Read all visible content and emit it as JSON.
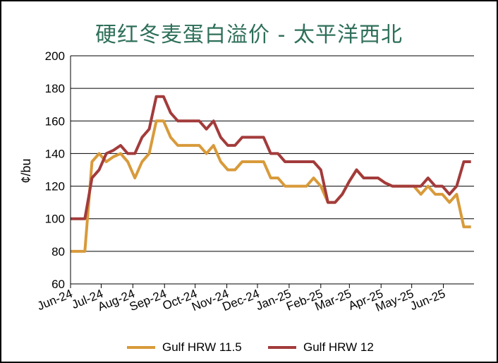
{
  "colors": {
    "gulf_115": "#d89a3a",
    "gulf_12": "#a33b3b",
    "title": "#2e6f5a"
  },
  "chart_data": {
    "type": "line",
    "title": "硬红冬麦蛋白溢价 - 太平洋西北",
    "ylabel": "¢/bu",
    "xlabel": "",
    "ylim": [
      60,
      200
    ],
    "yticks": [
      60,
      80,
      100,
      120,
      140,
      160,
      180,
      200
    ],
    "grid": "horizontal",
    "legend_position": "bottom",
    "x_tick_labels": [
      "Jun-24",
      "Jul-24",
      "Aug-24",
      "Sep-24",
      "Oct-24",
      "Nov-24",
      "Dec-24",
      "Jan-25",
      "Feb-25",
      "Mar-25",
      "Apr-25",
      "May-25",
      "Jun-25"
    ],
    "x": [
      "2024-06-01",
      "2024-06-08",
      "2024-06-15",
      "2024-06-22",
      "2024-06-29",
      "2024-07-06",
      "2024-07-13",
      "2024-07-20",
      "2024-07-27",
      "2024-08-03",
      "2024-08-10",
      "2024-08-17",
      "2024-08-24",
      "2024-08-31",
      "2024-09-07",
      "2024-09-14",
      "2024-09-21",
      "2024-09-28",
      "2024-10-05",
      "2024-10-12",
      "2024-10-19",
      "2024-10-26",
      "2024-11-02",
      "2024-11-09",
      "2024-11-16",
      "2024-11-23",
      "2024-11-30",
      "2024-12-07",
      "2024-12-14",
      "2024-12-21",
      "2024-12-28",
      "2025-01-04",
      "2025-01-11",
      "2025-01-18",
      "2025-01-25",
      "2025-02-01",
      "2025-02-08",
      "2025-02-15",
      "2025-02-22",
      "2025-03-01",
      "2025-03-08",
      "2025-03-15",
      "2025-03-22",
      "2025-03-29",
      "2025-04-05",
      "2025-04-12",
      "2025-04-19",
      "2025-04-26",
      "2025-05-03",
      "2025-05-10",
      "2025-05-17",
      "2025-05-24",
      "2025-05-31",
      "2025-06-07",
      "2025-06-14",
      "2025-06-21",
      "2025-06-28"
    ],
    "series": [
      {
        "name": "Gulf HRW 11.5",
        "color": "#d89a3a",
        "values": [
          80,
          80,
          80,
          135,
          140,
          135,
          138,
          140,
          135,
          125,
          135,
          140,
          160,
          160,
          150,
          145,
          145,
          145,
          145,
          140,
          145,
          135,
          130,
          130,
          135,
          135,
          135,
          135,
          125,
          125,
          120,
          120,
          120,
          120,
          125,
          120,
          110,
          110,
          115,
          123,
          130,
          125,
          125,
          125,
          122,
          120,
          120,
          120,
          120,
          115,
          120,
          115,
          115,
          110,
          115,
          95,
          95
        ]
      },
      {
        "name": "Gulf HRW 12",
        "color": "#a33b3b",
        "values": [
          100,
          100,
          100,
          125,
          130,
          140,
          142,
          145,
          140,
          140,
          150,
          155,
          175,
          175,
          165,
          160,
          160,
          160,
          160,
          155,
          160,
          150,
          145,
          145,
          150,
          150,
          150,
          150,
          140,
          140,
          135,
          135,
          135,
          135,
          135,
          130,
          110,
          110,
          115,
          123,
          130,
          125,
          125,
          125,
          122,
          120,
          120,
          120,
          120,
          120,
          125,
          120,
          120,
          115,
          120,
          135,
          135
        ]
      }
    ]
  }
}
